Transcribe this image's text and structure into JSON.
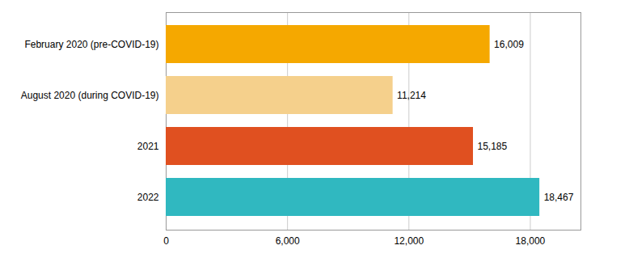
{
  "chart_data": {
    "type": "bar",
    "orientation": "horizontal",
    "categories": [
      "February 2020 (pre-COVID-19)",
      "August 2020 (during COVID-19)",
      "2021",
      "2022"
    ],
    "values": [
      16009,
      11214,
      15185,
      18467
    ],
    "value_labels": [
      "16,009",
      "11,214",
      "15,185",
      "18,467"
    ],
    "colors": [
      "#F5A800",
      "#F5D08C",
      "#E05020",
      "#30B8C0"
    ],
    "xlim": [
      0,
      20500
    ],
    "xticks": [
      0,
      {
        "value": 6000,
        "label": "6,000"
      },
      {
        "value": 12000,
        "label": "12,000"
      },
      {
        "value": 18000,
        "label": "18,000"
      }
    ],
    "grid": true,
    "data_labels": true
  }
}
